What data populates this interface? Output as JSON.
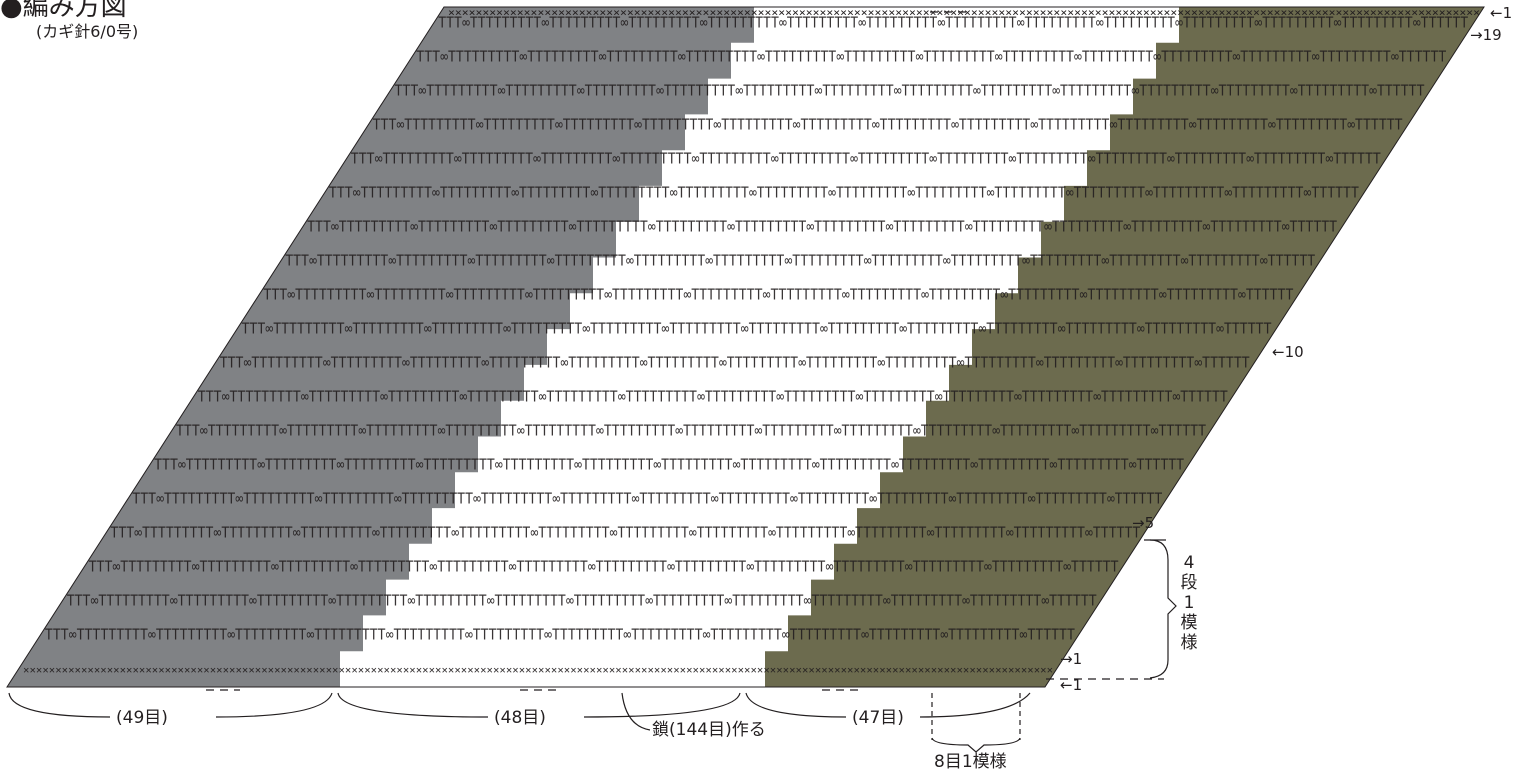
{
  "title": "●編み方図",
  "subtitle": "(カギ針6/0号)",
  "row_labels": {
    "r1_top": "←1",
    "r19": "→19",
    "r10": "←10",
    "r5": "→5",
    "r1_stitch": "→1",
    "r1_chain": "←1"
  },
  "segments": [
    "(49目)",
    "(48目)",
    "(47目)"
  ],
  "chain_label": "鎖(144目)作る",
  "repeat_label": "8目1模様",
  "pattern_label_lines": [
    "4",
    "段",
    "1",
    "模",
    "様"
  ],
  "colors": {
    "gray": "#808285",
    "olive": "#6c6b4e",
    "stitch_on_color": "#ffffff",
    "stitch_on_white": "#231f20",
    "line": "#231f20"
  },
  "symbols": {
    "single_crochet": "×",
    "double_crochet": "T",
    "chain": "∞"
  }
}
